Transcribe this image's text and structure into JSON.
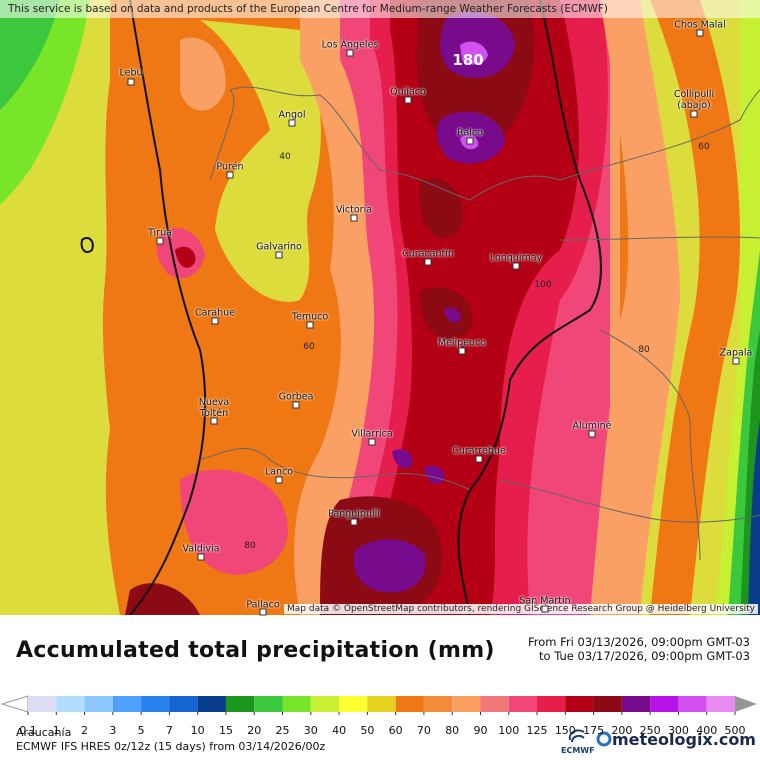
{
  "header": {
    "credit": "This service is based on data and products of the European Centre for Medium-range Weather Forecasts (ECMWF)"
  },
  "map": {
    "cities": [
      "Los Ángeles",
      "Chos Malal",
      "Lebu",
      "Quilaco",
      "Collipulli (abajo)",
      "Angol",
      "Ralco",
      "Purén",
      "Victoria",
      "Tirúa",
      "Galvarino",
      "Curacautín",
      "Lonquimay",
      "Carahue",
      "Temuco",
      "Melipeuco",
      "Zapala",
      "Nueva Toltén",
      "Gorbea",
      "Aluminé",
      "Villarrica",
      "Curarrehue",
      "Lanco",
      "Panguipulli",
      "Valdivia",
      "San Martín",
      "Pallaco"
    ],
    "contour_labels": [
      "180",
      "40",
      "60",
      "100",
      "60",
      "80",
      "80"
    ],
    "attribution": "Map data © OpenStreetMap contributors, rendering GIScience Research Group @ Heidelberg University"
  },
  "title": "Accumulated total precipitation (mm)",
  "period": {
    "from": "From Fri 03/13/2026, 09:00pm GMT-03",
    "to": "to Tue 03/17/2026, 09:00pm GMT-03"
  },
  "legend": {
    "ticks": [
      0.1,
      1,
      2,
      3,
      5,
      7,
      10,
      15,
      20,
      25,
      30,
      40,
      50,
      60,
      70,
      80,
      90,
      100,
      125,
      150,
      175,
      200,
      250,
      300,
      400,
      500
    ],
    "colors": [
      "#dcdcf5",
      "#b4dcff",
      "#8cc8ff",
      "#50a0ff",
      "#2882f0",
      "#1464d2",
      "#0a3c8c",
      "#1e961e",
      "#3cc83c",
      "#78e628",
      "#c8f032",
      "#ffff32",
      "#e6d21e",
      "#f07814",
      "#f08c3c",
      "#faa064",
      "#f07878",
      "#f04678",
      "#e61e4b",
      "#b40014",
      "#8c0a14",
      "#780a8c",
      "#b414e6",
      "#d250f0",
      "#e68cf0"
    ],
    "under_color": "#ffffff",
    "over_color": "#969696"
  },
  "footer": {
    "region": "Araucanía",
    "model": "ECMWF IFS HRES 0z/12z (15 days) from  03/14/2026/00z",
    "ecmwf_logo": "ECMWF",
    "brand": "meteologix.com"
  }
}
